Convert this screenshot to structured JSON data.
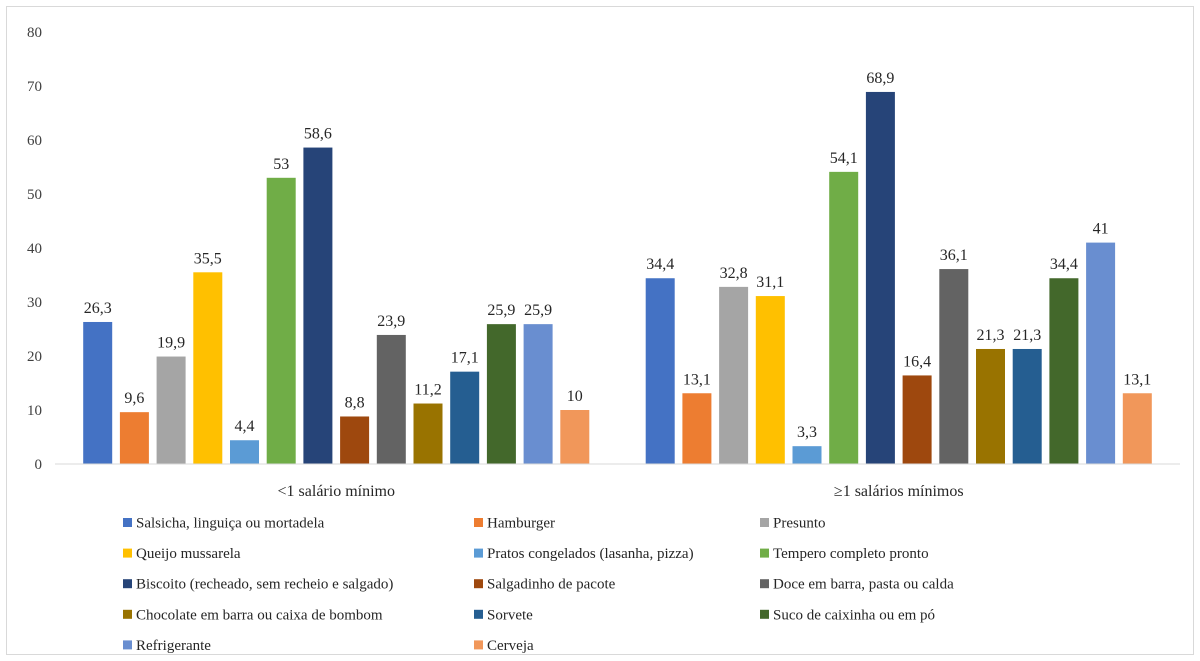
{
  "chart_data": {
    "type": "bar",
    "categories": [
      "<1 salário mínimo",
      "≥1 salários mínimos"
    ],
    "ylim": [
      0,
      80
    ],
    "yticks": [
      0,
      10,
      20,
      30,
      40,
      50,
      60,
      70,
      80
    ],
    "legend_position": "bottom",
    "grid": false,
    "series": [
      {
        "name": "Salsicha, linguiça ou mortadela",
        "color": "#4472c4",
        "values": [
          26.3,
          34.4
        ],
        "labels": [
          "26,3",
          "34,4"
        ]
      },
      {
        "name": "Hamburger",
        "color": "#ed7d31",
        "values": [
          9.6,
          13.1
        ],
        "labels": [
          "9,6",
          "13,1"
        ]
      },
      {
        "name": "Presunto",
        "color": "#a5a5a5",
        "values": [
          19.9,
          32.8
        ],
        "labels": [
          "19,9",
          "32,8"
        ]
      },
      {
        "name": "Queijo mussarela",
        "color": "#ffc000",
        "values": [
          35.5,
          31.1
        ],
        "labels": [
          "35,5",
          "31,1"
        ]
      },
      {
        "name": "Pratos congelados (lasanha, pizza)",
        "color": "#5b9bd5",
        "values": [
          4.4,
          3.3
        ],
        "labels": [
          "4,4",
          "3,3"
        ]
      },
      {
        "name": "Tempero completo pronto",
        "color": "#70ad47",
        "values": [
          53,
          54.1
        ],
        "labels": [
          "53",
          "54,1"
        ]
      },
      {
        "name": "Biscoito (recheado, sem recheio e salgado)",
        "color": "#264478",
        "values": [
          58.6,
          68.9
        ],
        "labels": [
          "58,6",
          "68,9"
        ]
      },
      {
        "name": "Salgadinho de pacote",
        "color": "#9e480e",
        "values": [
          8.8,
          16.4
        ],
        "labels": [
          "8,8",
          "16,4"
        ]
      },
      {
        "name": "Doce em barra, pasta ou calda",
        "color": "#636363",
        "values": [
          23.9,
          36.1
        ],
        "labels": [
          "23,9",
          "36,1"
        ]
      },
      {
        "name": "Chocolate em barra ou caixa de bombom",
        "color": "#997300",
        "values": [
          11.2,
          21.3
        ],
        "labels": [
          "11,2",
          "21,3"
        ]
      },
      {
        "name": "Sorvete",
        "color": "#255e91",
        "values": [
          17.1,
          21.3
        ],
        "labels": [
          "17,1",
          "21,3"
        ]
      },
      {
        "name": "Suco de caixinha ou em pó",
        "color": "#43682b",
        "values": [
          25.9,
          34.4
        ],
        "labels": [
          "25,9",
          "34,4"
        ]
      },
      {
        "name": "Refrigerante",
        "color": "#698ed0",
        "values": [
          25.9,
          41
        ],
        "labels": [
          "25,9",
          "41"
        ]
      },
      {
        "name": "Cerveja",
        "color": "#f1975a",
        "values": [
          10,
          13.1
        ],
        "labels": [
          "10",
          "13,1"
        ]
      }
    ]
  }
}
